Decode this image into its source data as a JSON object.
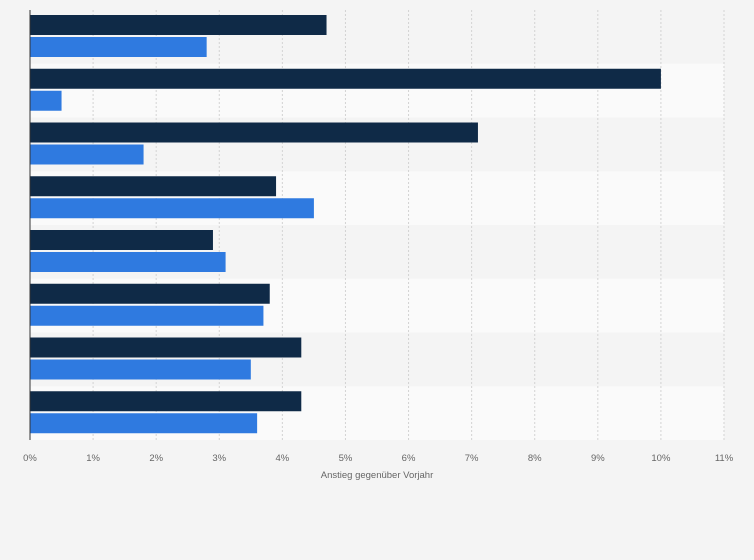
{
  "chart_data": {
    "type": "bar",
    "orientation": "horizontal",
    "categories": [
      "",
      "",
      "",
      "",
      "",
      "",
      "",
      ""
    ],
    "series": [
      {
        "color": "#0f2a47",
        "values": [
          4.7,
          10.0,
          7.1,
          3.9,
          2.9,
          3.8,
          4.3,
          4.3
        ]
      },
      {
        "color": "#2f7ae0",
        "values": [
          2.8,
          0.5,
          1.8,
          4.5,
          3.1,
          3.7,
          3.5,
          3.6
        ]
      }
    ],
    "xlabel": "Anstieg gegenüber Vorjahr",
    "ylabel": "",
    "xlim": [
      0,
      11
    ],
    "xticks": [
      "0%",
      "1%",
      "2%",
      "3%",
      "4%",
      "5%",
      "6%",
      "7%",
      "8%",
      "9%",
      "10%",
      "11%"
    ],
    "grid": "vertical-dashed",
    "legend": "none"
  }
}
